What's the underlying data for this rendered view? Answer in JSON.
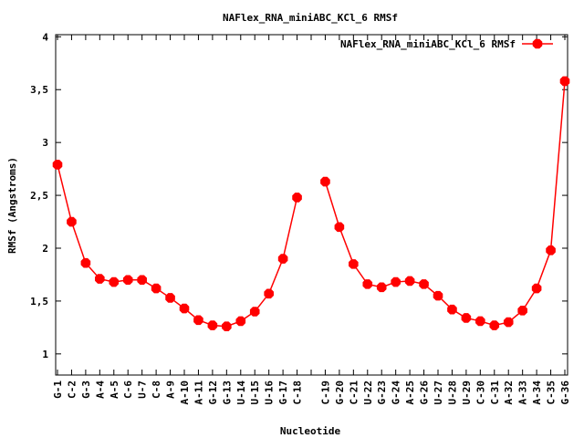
{
  "chart_data": {
    "type": "line",
    "title": "NAFlex_RNA_miniABC_KCl_6 RMSf",
    "xlabel": "Nucleotide",
    "ylabel": "RMSf (Angstroms)",
    "ylim": [
      0.8,
      4.02
    ],
    "yticks": [
      1,
      1.5,
      2,
      2.5,
      3,
      3.5,
      4
    ],
    "ytick_labels": [
      "1",
      "1,5",
      "2",
      "2,5",
      "3",
      "3,5",
      "4"
    ],
    "grid": false,
    "legend_position": "top-right",
    "series_color": "#ff0000",
    "categories": [
      "G-1",
      "C-2",
      "G-3",
      "A-4",
      "A-5",
      "C-6",
      "U-7",
      "C-8",
      "A-9",
      "A-10",
      "A-11",
      "G-12",
      "G-13",
      "U-14",
      "U-15",
      "U-16",
      "G-17",
      "C-18",
      "",
      "C-19",
      "G-20",
      "C-21",
      "U-22",
      "G-23",
      "G-24",
      "A-25",
      "G-26",
      "U-27",
      "U-28",
      "U-29",
      "C-30",
      "C-31",
      "A-32",
      "A-33",
      "A-34",
      "C-35",
      "G-36"
    ],
    "series": [
      {
        "name": "NAFlex_RNA_miniABC_KCl_6 RMSf",
        "values": [
          2.79,
          2.25,
          1.86,
          1.71,
          1.68,
          1.7,
          1.7,
          1.62,
          1.53,
          1.43,
          1.32,
          1.27,
          1.26,
          1.31,
          1.4,
          1.57,
          1.9,
          2.48,
          null,
          2.63,
          2.2,
          1.85,
          1.66,
          1.63,
          1.68,
          1.69,
          1.66,
          1.55,
          1.42,
          1.34,
          1.31,
          1.27,
          1.3,
          1.41,
          1.62,
          1.98,
          3.58
        ]
      }
    ]
  }
}
